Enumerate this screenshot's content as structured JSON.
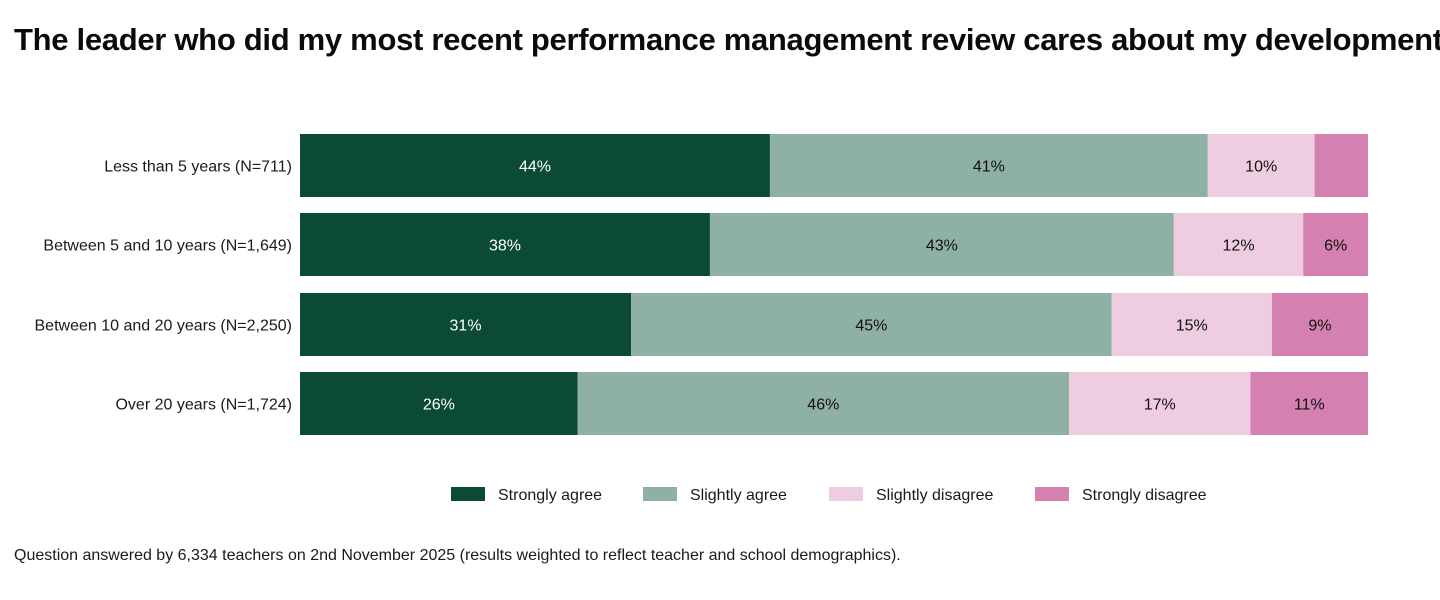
{
  "title": "The leader who did my most recent performance management review cares about my development",
  "footnote": "Question answered by 6,334 teachers on 2nd November 2025 (results weighted to reflect teacher and school demographics).",
  "chart_data": {
    "type": "bar",
    "orientation": "horizontal",
    "stacked": true,
    "normalized": true,
    "title": "The leader who did my most recent performance management review cares about my development",
    "categories": [
      "Less than 5 years (N=711)",
      "Between 5 and 10 years (N=1,649)",
      "Between 10 and 20 years (N=2,250)",
      "Over 20 years (N=1,724)"
    ],
    "series": [
      {
        "name": "Strongly agree",
        "color": "#0b4a36",
        "label_color": "#ffffff",
        "values": [
          44,
          38,
          31,
          26
        ]
      },
      {
        "name": "Slightly agree",
        "color": "#8fb0a4",
        "label_color": "#111111",
        "values": [
          41,
          43,
          45,
          46
        ]
      },
      {
        "name": "Slightly disagree",
        "color": "#efcde1",
        "label_color": "#111111",
        "values": [
          10,
          12,
          15,
          17
        ]
      },
      {
        "name": "Strongly disagree",
        "color": "#d480b0",
        "label_color": "#111111",
        "values": [
          5,
          6,
          9,
          11
        ]
      }
    ],
    "data_labels": [
      [
        "44%",
        "38%",
        "31%",
        "26%"
      ],
      [
        "41%",
        "43%",
        "45%",
        "46%"
      ],
      [
        "10%",
        "12%",
        "15%",
        "17%"
      ],
      [
        "",
        "6%",
        "9%",
        "11%"
      ]
    ],
    "xlabel": "",
    "ylabel": "",
    "xlim": [
      0,
      100
    ],
    "grid": false,
    "legend_position": "bottom"
  }
}
